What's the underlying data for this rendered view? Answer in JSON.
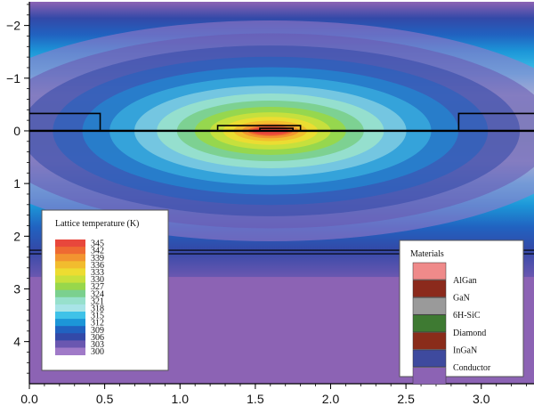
{
  "chart_data": {
    "type": "heatmap",
    "title": "",
    "xlabel": "",
    "ylabel": "",
    "xlim": [
      0.0,
      3.35
    ],
    "ylim": [
      -2.45,
      4.8
    ],
    "y_inverted": true,
    "x_ticks": [
      0.0,
      0.5,
      1.0,
      1.5,
      2.0,
      2.5,
      3.0
    ],
    "x_tick_labels": [
      "0.0",
      "0.5",
      "1.0",
      "1.5",
      "2.0",
      "2.5",
      "3.0"
    ],
    "y_ticks": [
      -2,
      -1,
      0,
      1,
      2,
      3,
      4
    ],
    "y_tick_labels": [
      "−2",
      "−1",
      "0",
      "1",
      "2",
      "3",
      "4"
    ],
    "colorbar": {
      "title": "Lattice temperature (K)",
      "levels": [
        345,
        342,
        339,
        336,
        333,
        330,
        327,
        324,
        321,
        318,
        315,
        312,
        309,
        306,
        303,
        300
      ],
      "colors": [
        "#e8473c",
        "#ee6a32",
        "#f29430",
        "#f2bc2e",
        "#eddc31",
        "#c8e03c",
        "#98d74b",
        "#7bd08e",
        "#97e0cc",
        "#a8e4e7",
        "#3fc2e8",
        "#1c96d8",
        "#2162c0",
        "#3349a8",
        "#6a57b0",
        "#a07ac8"
      ]
    },
    "materials_legend": {
      "title": "Materials",
      "items": [
        {
          "label": "AlGan",
          "color": "#ef8a8a"
        },
        {
          "label": "GaN",
          "color": "#8b2a1c"
        },
        {
          "label": "6H-SiC",
          "color": "#9a9a9a"
        },
        {
          "label": "Diamond",
          "color": "#3e7a32"
        },
        {
          "label": "InGaN",
          "color": "#8a2c1a"
        },
        {
          "label": "Conductor",
          "color": "#3e4a9e"
        },
        {
          "label": "",
          "color": "#8c63b4"
        }
      ]
    },
    "hotspot": {
      "x": 1.6,
      "y": 0.0,
      "peak_temperature": 345
    },
    "interfaces_y": [
      0.0,
      2.3
    ],
    "device_outlines": [
      {
        "x": [
          0.0,
          0.47,
          0.47
        ],
        "y": [
          -0.33,
          -0.33,
          0.0
        ]
      },
      {
        "x": [
          2.85,
          2.85,
          3.35
        ],
        "y": [
          0.0,
          -0.33,
          -0.33
        ]
      },
      {
        "x": [
          1.25,
          1.25,
          1.8,
          1.8
        ],
        "y": [
          0.0,
          -0.1,
          -0.1,
          0.0
        ]
      },
      {
        "x": [
          1.53,
          1.53,
          1.75,
          1.75
        ],
        "y": [
          0.0,
          -0.05,
          -0.05,
          0.0
        ]
      }
    ]
  }
}
